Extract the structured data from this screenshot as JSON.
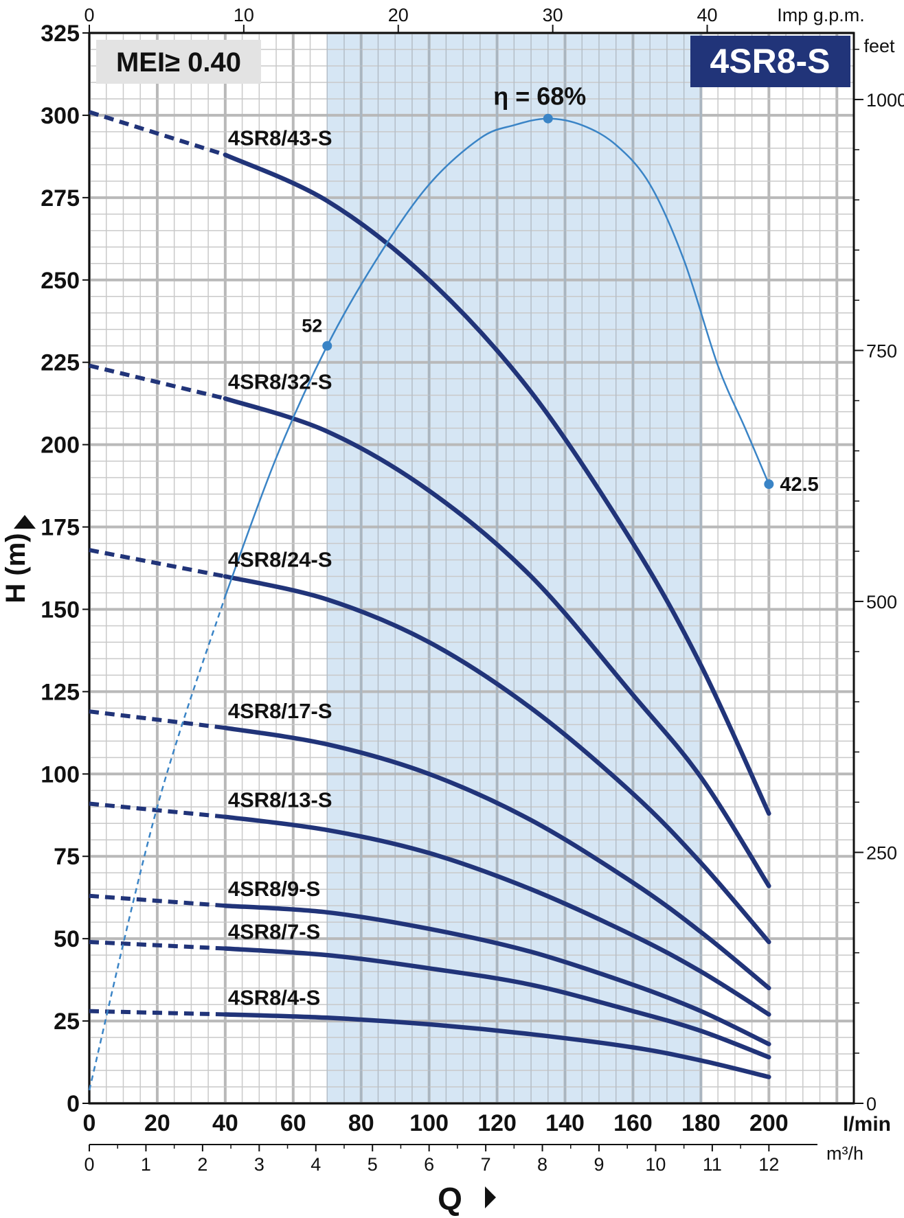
{
  "chart_data": {
    "type": "line",
    "badge": "MEI≥ 0.40",
    "model": "4SR8-S",
    "xlabel": "Q",
    "ylabel": "H (m)",
    "x_unit": "l/min",
    "x2_unit": "m³/h",
    "x3_unit": "Imp g.p.m.",
    "y2_unit": "feet",
    "xlim": [
      0,
      225
    ],
    "ylim": [
      0,
      325
    ],
    "x_ticks": [
      0,
      20,
      40,
      60,
      80,
      100,
      120,
      140,
      160,
      180,
      200
    ],
    "y_ticks": [
      0,
      25,
      50,
      75,
      100,
      125,
      150,
      175,
      200,
      225,
      250,
      275,
      300,
      325
    ],
    "m3h_ticks": [
      0,
      1,
      2,
      3,
      4,
      5,
      6,
      7,
      8,
      9,
      10,
      11,
      12
    ],
    "impgpm_ticks": [
      0,
      10,
      20,
      30,
      40
    ],
    "feet_ticks": [
      0,
      250,
      500,
      750,
      1000
    ],
    "grid": true,
    "operating_range": [
      70,
      180
    ],
    "series": [
      {
        "name": "4SR8/43-S",
        "x": [
          0,
          40,
          70,
          100,
          130,
          160,
          180,
          200
        ],
        "y": [
          301,
          288,
          274,
          250,
          216,
          170,
          133,
          88
        ]
      },
      {
        "name": "4SR8/32-S",
        "x": [
          0,
          40,
          70,
          100,
          130,
          160,
          180,
          200
        ],
        "y": [
          224,
          214,
          204,
          186,
          160,
          124,
          99,
          66
        ]
      },
      {
        "name": "4SR8/24-S",
        "x": [
          0,
          40,
          70,
          100,
          130,
          160,
          180,
          200
        ],
        "y": [
          168,
          160,
          153,
          140,
          120,
          94,
          73,
          49
        ]
      },
      {
        "name": "4SR8/17-S",
        "x": [
          0,
          40,
          70,
          100,
          130,
          160,
          180,
          200
        ],
        "y": [
          119,
          114,
          109,
          100,
          86,
          67,
          52,
          35
        ]
      },
      {
        "name": "4SR8/13-S",
        "x": [
          0,
          40,
          70,
          100,
          130,
          160,
          180,
          200
        ],
        "y": [
          91,
          87,
          83,
          76,
          65,
          51,
          40,
          27
        ]
      },
      {
        "name": "4SR8/9-S",
        "x": [
          0,
          40,
          70,
          100,
          130,
          160,
          180,
          200
        ],
        "y": [
          63,
          60,
          58,
          53,
          46,
          36,
          28,
          18
        ]
      },
      {
        "name": "4SR8/7-S",
        "x": [
          0,
          40,
          70,
          100,
          130,
          160,
          180,
          200
        ],
        "y": [
          49,
          47,
          45,
          41,
          36,
          28,
          22,
          14
        ]
      },
      {
        "name": "4SR8/4-S",
        "x": [
          0,
          40,
          70,
          100,
          130,
          160,
          180,
          200
        ],
        "y": [
          28,
          27,
          26,
          24,
          21,
          17,
          13,
          8
        ]
      }
    ],
    "efficiency": {
      "label": "η = 68%",
      "start_label": "52",
      "end_label": "42.5",
      "x": [
        0,
        20,
        40,
        55,
        70,
        85,
        100,
        115,
        125,
        135,
        145,
        155,
        165,
        175,
        185,
        193,
        200
      ],
      "y": [
        4,
        90,
        154,
        196,
        230,
        257,
        279,
        293,
        297,
        299,
        297,
        291,
        279,
        256,
        224,
        205,
        188
      ],
      "peak": [
        135,
        299
      ],
      "start_point": [
        70,
        230
      ],
      "end_point": [
        200,
        188
      ],
      "dashed_until": 40
    },
    "colors": {
      "pump_curve": "#213479",
      "efficiency": "#3a84c6",
      "range_fill": "#d6e6f4",
      "grid": "#c9c9c9",
      "badge_fill": "#e3e3e3",
      "model_fill": "#213479"
    }
  }
}
